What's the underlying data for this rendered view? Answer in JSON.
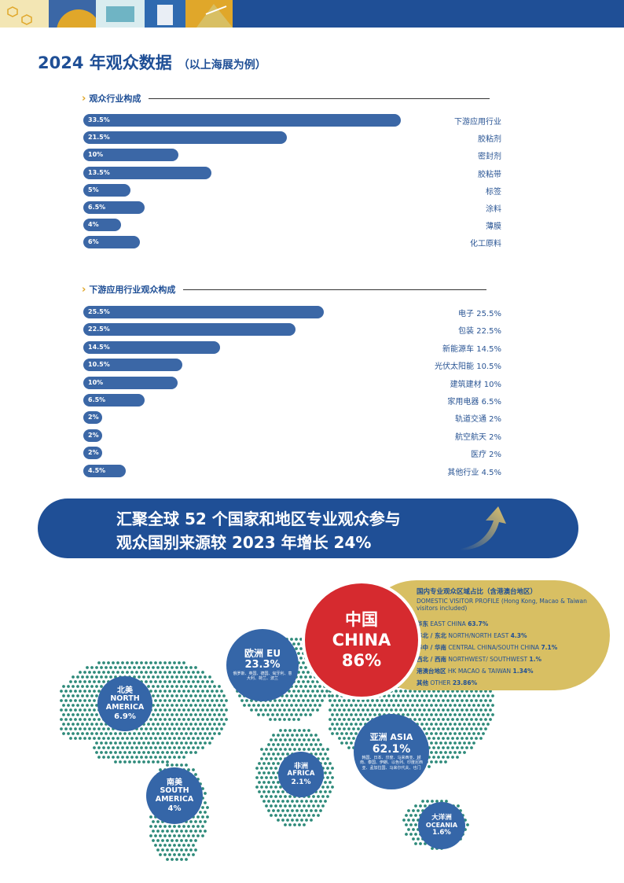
{
  "title": "2024 年观众数据",
  "title_sub": "（以上海展为例）",
  "colors": {
    "primary": "#1f4f96",
    "bar": "#3b67a6",
    "china": "#d62a2f",
    "gold": "#d8bf63",
    "accent": "#e0a72a"
  },
  "section1": {
    "heading": "观众行业构成",
    "bars": [
      {
        "pct": "33.5%",
        "value": 33.5,
        "label": "下游应用行业"
      },
      {
        "pct": "21.5%",
        "value": 21.5,
        "label": "胶粘剂"
      },
      {
        "pct": "10%",
        "value": 10,
        "label": "密封剂"
      },
      {
        "pct": "13.5%",
        "value": 13.5,
        "label": "胶粘带"
      },
      {
        "pct": "5%",
        "value": 5,
        "label": "标签"
      },
      {
        "pct": "6.5%",
        "value": 6.5,
        "label": "涂料"
      },
      {
        "pct": "4%",
        "value": 4,
        "label": "薄膜"
      },
      {
        "pct": "6%",
        "value": 6,
        "label": "化工原料"
      }
    ]
  },
  "section2": {
    "heading": "下游应用行业观众构成",
    "bars": [
      {
        "pct": "25.5%",
        "value": 25.5,
        "label": "电子 25.5%"
      },
      {
        "pct": "22.5%",
        "value": 22.5,
        "label": "包装 22.5%"
      },
      {
        "pct": "14.5%",
        "value": 14.5,
        "label": "新能源车  14.5%"
      },
      {
        "pct": "10.5%",
        "value": 10.5,
        "label": "光伏太阳能  10.5%"
      },
      {
        "pct": "10%",
        "value": 10,
        "label": "建筑建材   10%"
      },
      {
        "pct": "6.5%",
        "value": 6.5,
        "label": "家用电器 6.5%"
      },
      {
        "pct": "2%",
        "value": 2,
        "label": "轨道交通 2%"
      },
      {
        "pct": "2%",
        "value": 2,
        "label": "航空航天 2%"
      },
      {
        "pct": "2%",
        "value": 2,
        "label": "医疗  2%"
      },
      {
        "pct": "4.5%",
        "value": 4.5,
        "label": "其他行业 4.5%"
      }
    ]
  },
  "banner": {
    "line1": "汇聚全球 52 个国家和地区专业观众参与",
    "line2": "观众国别来源较 2023 年增长 24%"
  },
  "map": {
    "china": {
      "cn": "中国",
      "en": "CHINA",
      "pct": "86%"
    },
    "domestic": {
      "title": "国内专业观众区域占比（含港澳台地区）",
      "desc": "DOMESTIC VISITOR PROFILE (Hong Kong, Macao & Taiwan visitors included)",
      "rows": [
        {
          "cn": "华东",
          "en": " EAST CHINA ",
          "pct": "63.7%"
        },
        {
          "cn": "华北 / 东北",
          "en": " NORTH/NORTH EAST ",
          "pct": "4.3%"
        },
        {
          "cn": "华中 / 华南",
          "en": " CENTRAL CHINA/SOUTH CHINA ",
          "pct": "7.1%"
        },
        {
          "cn": "西北 / 西南",
          "en": " NORTHWEST/ SOUTHWEST ",
          "pct": "1.%"
        },
        {
          "cn": "港澳台地区",
          "en": " HK MACAO & TAIWAN ",
          "pct": "1.34%"
        },
        {
          "cn": "其他",
          "en": " OTHER ",
          "pct": "23.86%"
        }
      ]
    },
    "eu": {
      "name": "欧洲 EU",
      "pct": "23.3%",
      "sub": "俄罗斯、英国、德国、匈牙利、意大利、荷兰、波兰"
    },
    "north_america": {
      "cn": "北美",
      "en1": "NORTH",
      "en2": "AMERICA",
      "pct": "6.9%"
    },
    "asia": {
      "name": "亚洲 ASIA",
      "pct": "62.1%",
      "sub": "韩国、日本、印度、马来西亚、越南、泰国、伊朗、以色列、印度尼西亚、孟加拉国、马来尔代夫、也门"
    },
    "africa": {
      "cn": "非洲",
      "en": "AFRICA",
      "pct": "2.1%"
    },
    "south_america": {
      "cn": "南美",
      "en1": "SOUTH",
      "en2": "AMERICA",
      "pct": "4%"
    },
    "oceania": {
      "cn": "大洋洲",
      "en": "OCEANIA",
      "pct": "1.6%"
    }
  }
}
